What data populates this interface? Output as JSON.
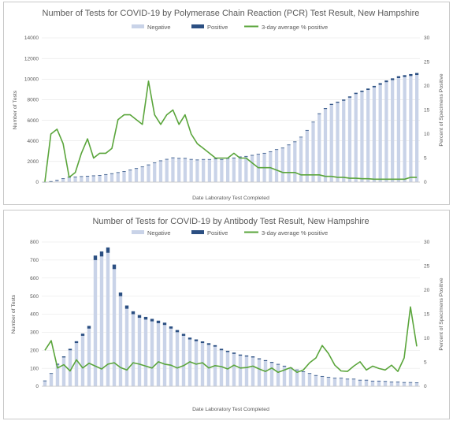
{
  "chart_data": [
    {
      "type": "bar",
      "title": "Number of Tests for COVID-19 by Polymerase Chain Reaction (PCR) Test Result, New Hampshire",
      "xlabel": "Date Laboratory Test Completed",
      "ylabel": "Number of Tests",
      "y2label": "Percent of Specimens Positive",
      "ylim": [
        0,
        14000
      ],
      "y2lim": [
        0,
        30
      ],
      "yticks": [
        "0",
        "2000",
        "4000",
        "6000",
        "8000",
        "10000",
        "12000",
        "14000"
      ],
      "y2ticks": [
        "0",
        "5",
        "10",
        "15",
        "20",
        "25",
        "30"
      ],
      "legend": {
        "position": "top",
        "entries": [
          "Negative",
          "Positive",
          "3-day average % positive"
        ]
      },
      "colors": {
        "negative": "#c9d3e8",
        "positive": "#2b4f82",
        "line": "#5aa53b"
      },
      "grid": true,
      "series": [
        {
          "name": "Negative",
          "values": [
            15,
            70,
            175,
            320,
            460,
            470,
            520,
            560,
            600,
            640,
            720,
            800,
            900,
            1000,
            1150,
            1300,
            1450,
            1650,
            1850,
            2050,
            2200,
            2350,
            2300,
            2300,
            2200,
            2150,
            2200,
            2200,
            2250,
            2200,
            2300,
            2350,
            2450,
            2500,
            2600,
            2700,
            2800,
            2950,
            3150,
            3300,
            3600,
            3900,
            4350,
            5000,
            5800,
            6600,
            7100,
            7500,
            7700,
            7900,
            8200,
            8550,
            8750,
            8950,
            9200,
            9450,
            9700,
            9900,
            10100,
            10200,
            10300,
            10400
          ]
        },
        {
          "name": "Positive",
          "values": [
            8,
            20,
            35,
            45,
            50,
            52,
            55,
            50,
            47,
            45,
            50,
            55,
            60,
            55,
            52,
            55,
            60,
            57,
            55,
            50,
            47,
            45,
            42,
            40,
            38,
            35,
            33,
            30,
            30,
            28,
            28,
            30,
            30,
            32,
            33,
            35,
            35,
            37,
            40,
            42,
            45,
            45,
            50,
            55,
            60,
            70,
            85,
            95,
            100,
            110,
            115,
            120,
            125,
            130,
            140,
            150,
            160,
            170,
            175,
            180,
            185,
            190
          ]
        },
        {
          "name": "3-day average % positive",
          "values": [
            0,
            10,
            11,
            8,
            1,
            2,
            6,
            9,
            5,
            6,
            6,
            7,
            13,
            14,
            14,
            13,
            12,
            21,
            14,
            12,
            14,
            15,
            12,
            14,
            10,
            8,
            7,
            6,
            5,
            5,
            5,
            6,
            5,
            5,
            4,
            3,
            3,
            3,
            2.5,
            2,
            2,
            2,
            1.5,
            1.5,
            1.5,
            1.5,
            1.2,
            1.2,
            1,
            1,
            0.8,
            0.8,
            0.7,
            0.7,
            0.6,
            0.6,
            0.6,
            0.6,
            0.6,
            0.6,
            1,
            1
          ]
        }
      ]
    },
    {
      "type": "bar",
      "title": "Number of Tests for COVID-19 by Antibody Test Result, New Hampshire",
      "xlabel": "Date Laboratory Test Completed",
      "ylabel": "Number of Tests",
      "y2label": "Percent of Specimens Positive",
      "ylim": [
        0,
        800
      ],
      "y2lim": [
        0,
        30
      ],
      "yticks": [
        "0",
        "100",
        "200",
        "300",
        "400",
        "500",
        "600",
        "700",
        "800"
      ],
      "y2ticks": [
        "0",
        "5",
        "10",
        "15",
        "20",
        "25",
        "30"
      ],
      "legend": {
        "position": "top",
        "entries": [
          "Negative",
          "Positive",
          "3-day average % positive"
        ]
      },
      "colors": {
        "negative": "#c9d3e8",
        "positive": "#2b4f82",
        "line": "#5aa53b"
      },
      "grid": true,
      "series": [
        {
          "name": "Negative",
          "values": [
            30,
            70,
            120,
            160,
            200,
            240,
            280,
            320,
            700,
            720,
            740,
            650,
            500,
            430,
            400,
            380,
            370,
            360,
            350,
            340,
            320,
            300,
            280,
            260,
            250,
            240,
            230,
            220,
            200,
            190,
            180,
            170,
            165,
            160,
            150,
            140,
            130,
            120,
            110,
            100,
            90,
            80,
            70,
            60,
            55,
            50,
            45,
            45,
            40,
            40,
            35,
            35,
            30,
            30,
            28,
            25,
            25,
            22,
            22,
            20
          ]
        },
        {
          "name": "Positive",
          "values": [
            2,
            3,
            5,
            6,
            8,
            10,
            12,
            15,
            25,
            28,
            30,
            25,
            20,
            18,
            16,
            15,
            15,
            14,
            14,
            13,
            12,
            12,
            11,
            10,
            10,
            9,
            9,
            8,
            8,
            7,
            7,
            6,
            6,
            6,
            5,
            5,
            5,
            4,
            4,
            4,
            3,
            3,
            3,
            2,
            2,
            2,
            2,
            2,
            2,
            2,
            1,
            1,
            1,
            1,
            1,
            1,
            1,
            1,
            1,
            1
          ]
        },
        {
          "name": "3-day average % positive",
          "values": [
            7.5,
            9.5,
            3.8,
            4.5,
            3.2,
            5.5,
            3.8,
            4.8,
            4.2,
            3.6,
            4.6,
            4.9,
            3.9,
            3.4,
            4.9,
            4.6,
            4.2,
            3.8,
            5.1,
            4.6,
            4.4,
            3.8,
            4.3,
            5.1,
            4.6,
            4.9,
            3.8,
            4.3,
            4.1,
            3.6,
            4.4,
            3.8,
            3.9,
            4.2,
            3.6,
            3.1,
            3.8,
            2.9,
            3.4,
            3.9,
            2.9,
            3.4,
            4.9,
            5.9,
            8.5,
            6.8,
            4.4,
            3.2,
            3.1,
            4.2,
            5.1,
            3.4,
            4.2,
            3.7,
            3.4,
            4.4,
            3.1,
            5.9,
            16.5,
            8.3
          ]
        }
      ]
    }
  ]
}
